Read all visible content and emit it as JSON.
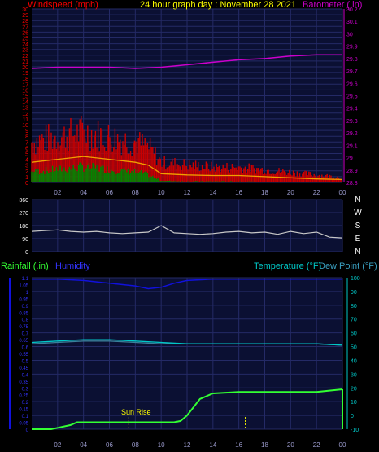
{
  "header": {
    "title": "24 hour graph day : November 28 2021",
    "left_label": "Windspeed (mph)",
    "right_label": "Barometer (.in)"
  },
  "footer_labels": {
    "rainfall": "Rainfall (.in)",
    "humidity": "Humidity",
    "temperature": "Temperature (°F)",
    "dewpoint": "Dew Point (°F)"
  },
  "sunrise": {
    "label": "Sun Rise",
    "hour": 7.5
  },
  "sunset": {
    "hour": 16.5
  },
  "colors": {
    "panel_bg": "#0b1033",
    "grid": "#242a66",
    "title": "#ffff00",
    "wind": "#cc0000",
    "wind_label": "#ff0000",
    "gust": "#008800",
    "avg_wind": "#f0a000",
    "barometer": "#cc00cc",
    "direction": "#c8c8c8",
    "humidity": "#1111dd",
    "temperature": "#00c8c8",
    "dewpoint": "#3a7f9a",
    "rain": "#33ff33",
    "axis_text": "#9a9acc"
  },
  "chart_data": [
    {
      "type": "line",
      "name": "wind-barometer",
      "x_ticks": [
        "02",
        "04",
        "06",
        "08",
        "10",
        "12",
        "14",
        "16",
        "18",
        "20",
        "22",
        "00"
      ],
      "left_axis": {
        "label": "Windspeed (mph)",
        "range": [
          0,
          30
        ],
        "ticks": [
          "0",
          "1",
          "2",
          "3",
          "4",
          "5",
          "6",
          "7",
          "8",
          "9",
          "10",
          "11",
          "12",
          "13",
          "14",
          "15",
          "16",
          "17",
          "18",
          "19",
          "20",
          "21",
          "22",
          "23",
          "24",
          "25",
          "26",
          "27",
          "28",
          "29",
          "30"
        ]
      },
      "right_axis": {
        "label": "Barometer (.in)",
        "range": [
          28.8,
          30.2
        ],
        "ticks": [
          "28.8",
          "28.9",
          "29",
          "29.1",
          "29.2",
          "29.3",
          "29.4",
          "29.5",
          "29.6",
          "29.7",
          "29.8",
          "29.9",
          "30",
          "30.1",
          "30.2"
        ]
      },
      "barometer": {
        "x": [
          0,
          2,
          4,
          6,
          8,
          10,
          12,
          14,
          16,
          18,
          20,
          22,
          24
        ],
        "y": [
          29.72,
          29.73,
          29.73,
          29.73,
          29.72,
          29.73,
          29.75,
          29.77,
          29.79,
          29.8,
          29.82,
          29.83,
          29.83
        ]
      },
      "wind_gust": {
        "x": [
          0,
          2,
          4,
          6,
          8,
          9,
          10,
          12,
          14,
          16,
          18,
          20,
          22,
          24
        ],
        "y": [
          8,
          9,
          10,
          9,
          8,
          7,
          4,
          3.5,
          3,
          3,
          2.5,
          2,
          1.5,
          1
        ]
      },
      "wind_avg": {
        "x": [
          0,
          2,
          4,
          6,
          8,
          9,
          10,
          12,
          14,
          16,
          18,
          20,
          22,
          24
        ],
        "y": [
          3.5,
          4,
          4.5,
          4,
          3.5,
          3,
          1.5,
          1.3,
          1.2,
          1.2,
          1,
          0.8,
          0.6,
          0.5
        ]
      },
      "wind_min": {
        "x": [
          0,
          2,
          4,
          6,
          8,
          9,
          10,
          12,
          14,
          16,
          18,
          20,
          22,
          24
        ],
        "y": [
          2,
          2.5,
          3,
          2.5,
          2,
          1.5,
          0.3,
          0.2,
          0.2,
          0.2,
          0.1,
          0.1,
          0,
          0
        ]
      }
    },
    {
      "type": "line",
      "name": "wind-direction",
      "x_ticks": [
        "02",
        "04",
        "06",
        "08",
        "10",
        "12",
        "14",
        "16",
        "18",
        "20",
        "22",
        "00"
      ],
      "left_axis": {
        "range": [
          0,
          360
        ],
        "ticks": [
          "0",
          "90",
          "180",
          "270",
          "360"
        ]
      },
      "right_labels": [
        "N",
        "W",
        "S",
        "E",
        "N"
      ],
      "direction": {
        "x": [
          0,
          1,
          2,
          3,
          4,
          5,
          6,
          7,
          8,
          9,
          10,
          11,
          12,
          13,
          14,
          15,
          16,
          17,
          18,
          19,
          20,
          21,
          22,
          23,
          24
        ],
        "y": [
          140,
          145,
          150,
          140,
          135,
          140,
          130,
          125,
          130,
          135,
          180,
          130,
          125,
          120,
          125,
          135,
          140,
          130,
          135,
          120,
          140,
          125,
          135,
          100,
          95
        ]
      }
    },
    {
      "type": "line",
      "name": "rain-humidity-temp",
      "x_ticks": [
        "02",
        "04",
        "06",
        "08",
        "10",
        "12",
        "14",
        "16",
        "18",
        "20",
        "22",
        "00"
      ],
      "left_axis": {
        "label": "Rainfall (.in)",
        "range": [
          0,
          1.1
        ],
        "ticks": [
          "0",
          "0.05",
          "0.1",
          "0.15",
          "0.2",
          "0.25",
          "0.3",
          "0.35",
          "0.4",
          "0.45",
          "0.5",
          "0.55",
          "0.6",
          "0.65",
          "0.7",
          "0.75",
          "0.8",
          "0.85",
          "0.9",
          "0.95",
          "1",
          "1.05",
          "1.1"
        ]
      },
      "right_axis": {
        "label": "Temperature (°F)",
        "range": [
          -10,
          100
        ],
        "ticks": [
          "-10",
          "0",
          "10",
          "20",
          "30",
          "40",
          "50",
          "60",
          "70",
          "80",
          "90",
          "100"
        ]
      },
      "humidity": {
        "x": [
          0,
          2,
          4,
          6,
          8,
          9,
          10,
          11,
          12,
          14,
          16,
          18,
          20,
          22,
          24
        ],
        "y": [
          99,
          99,
          98,
          96,
          94,
          92,
          93,
          96,
          98,
          99,
          99,
          99,
          99,
          99,
          99
        ]
      },
      "temperature": {
        "x": [
          0,
          2,
          4,
          6,
          8,
          10,
          12,
          14,
          16,
          18,
          20,
          22,
          24
        ],
        "y": [
          53,
          54,
          55,
          55,
          54,
          53,
          52,
          52,
          52,
          52,
          52,
          52,
          51
        ]
      },
      "dewpoint": {
        "x": [
          0,
          2,
          4,
          6,
          8,
          10,
          12,
          14,
          16,
          18,
          20,
          22,
          24
        ],
        "y": [
          52,
          53,
          54,
          54,
          53,
          52,
          52,
          52,
          52,
          52,
          52,
          52,
          51
        ]
      },
      "rain": {
        "x": [
          0,
          1.5,
          2,
          3,
          3.5,
          4,
          5,
          6,
          8,
          10,
          11,
          11.5,
          12,
          13,
          14,
          16,
          18,
          20,
          22,
          24
        ],
        "y": [
          0,
          0,
          0.01,
          0.03,
          0.05,
          0.05,
          0.05,
          0.05,
          0.05,
          0.05,
          0.05,
          0.06,
          0.1,
          0.22,
          0.26,
          0.27,
          0.27,
          0.27,
          0.27,
          0.29
        ]
      }
    }
  ]
}
